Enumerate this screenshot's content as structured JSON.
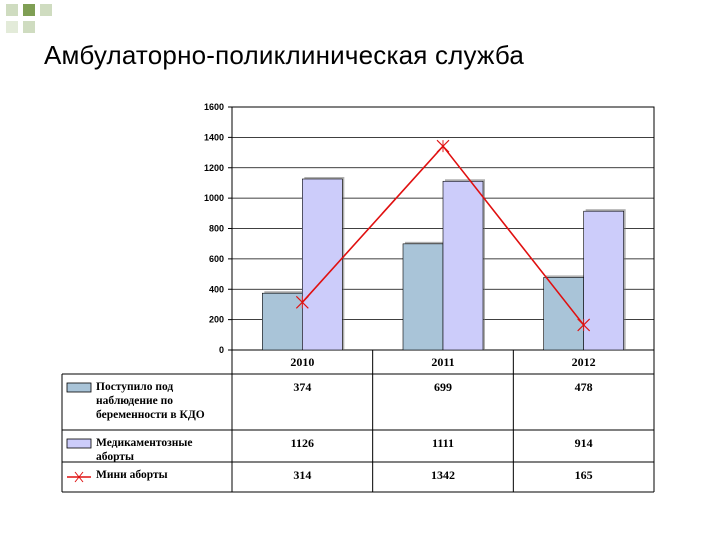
{
  "page": {
    "title": "Амбулаторно-поликлиническая служба"
  },
  "colors": {
    "series1_fill": "#a9c4d8",
    "series2_fill": "#ccccfa",
    "line": "#e01010",
    "deco_green": "#7f9f54",
    "deco_light": "#cfdcc0"
  },
  "chart_data": {
    "type": "bar",
    "categories": [
      "2010",
      "2011",
      "2012"
    ],
    "ylim": [
      0,
      1600
    ],
    "yticks": [
      "1600",
      "1400",
      "1200",
      "1000",
      "800",
      "600",
      "400",
      "200",
      "0"
    ],
    "grid": true,
    "legend": "data-table-below",
    "series": [
      {
        "name": "Поступило под наблюдение по беременности в КДО",
        "name_lines": [
          "Поступило под",
          "наблюдение по",
          "беременности в КДО"
        ],
        "type": "bar",
        "values": [
          374,
          699,
          478
        ],
        "labels": [
          "374",
          "699",
          "478"
        ]
      },
      {
        "name": "Медикаментозные аборты",
        "name_lines": [
          "Медикаментозные",
          "аборты"
        ],
        "type": "bar",
        "values": [
          1126,
          1111,
          914
        ],
        "labels": [
          "1126",
          "1111",
          "914"
        ]
      },
      {
        "name": "Мини аборты",
        "name_lines": [
          "Мини аборты"
        ],
        "type": "line",
        "values": [
          314,
          1342,
          165
        ],
        "labels": [
          "314",
          "1342",
          "165"
        ]
      }
    ]
  }
}
